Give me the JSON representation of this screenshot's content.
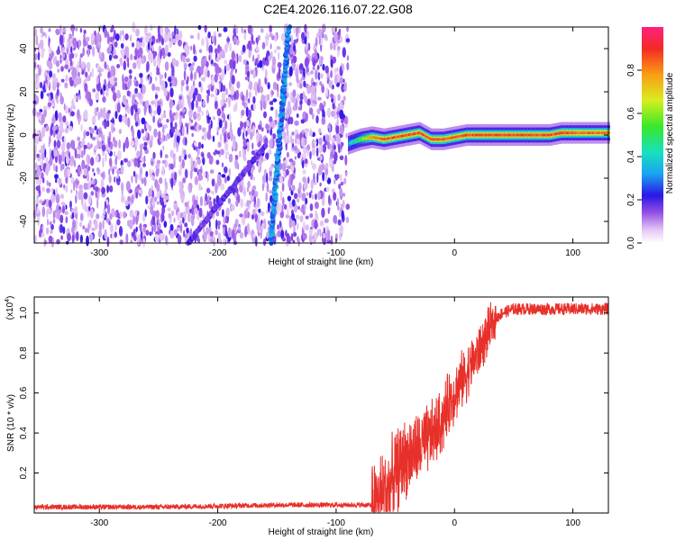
{
  "title": "C2E4.2026.116.07.22.G08",
  "chart_data": [
    {
      "type": "heatmap",
      "xlabel": "Height of straight line (km)",
      "ylabel": "Frequency (Hz)",
      "xlim": [
        -355,
        130
      ],
      "ylim": [
        -50,
        50
      ],
      "xticks": [
        -300,
        -200,
        -100,
        0,
        100
      ],
      "yticks": [
        -40,
        -20,
        0,
        20,
        40
      ],
      "colorbar": {
        "label": "Normalized spectral amplitude",
        "range": [
          0,
          1
        ],
        "ticks": [
          "0.0",
          "0.2",
          "0.4",
          "0.6",
          "0.8"
        ],
        "tick_values": [
          0.0,
          0.2,
          0.4,
          0.6,
          0.8
        ]
      },
      "noise_region_x": [
        -355,
        -90
      ],
      "noise_level": 0.15,
      "streak_main": {
        "x": [
          -155,
          -140
        ],
        "y": [
          -50,
          50
        ],
        "amplitude": 0.3
      },
      "streak_weak": {
        "x": [
          -225,
          -160
        ],
        "y": [
          -50,
          -5
        ],
        "amplitude": 0.18
      },
      "carrier": {
        "x": [
          -90,
          -80,
          -70,
          -60,
          -50,
          -40,
          -30,
          -20,
          -10,
          0,
          10,
          20,
          30,
          40,
          50,
          60,
          70,
          80,
          90,
          100,
          110,
          120,
          130
        ],
        "y": [
          -4,
          -2,
          -1,
          -2,
          -1,
          0,
          1,
          -2,
          -2,
          -1,
          0,
          0,
          0,
          0,
          0,
          0,
          0,
          0,
          1,
          1,
          1,
          1,
          1
        ],
        "amplitude": [
          0.4,
          0.6,
          0.85,
          0.9,
          0.9,
          0.92,
          0.92,
          0.9,
          0.9,
          0.9,
          0.92,
          0.92,
          0.92,
          0.92,
          0.92,
          0.92,
          0.92,
          0.92,
          0.94,
          0.9,
          0.88,
          0.88,
          0.88
        ]
      }
    },
    {
      "type": "line",
      "xlabel": "Height of straight line (km)",
      "ylabel": "SNR (10 * v/v)",
      "y_multiplier": "(x10",
      "y_multiplier_exp": "4",
      "xlim": [
        -355,
        130
      ],
      "ylim": [
        0,
        1.08
      ],
      "xticks": [
        -300,
        -200,
        -100,
        0,
        100
      ],
      "yticks": [
        0.2,
        0.4,
        0.6,
        0.8,
        1.0
      ],
      "color": "#e8302a",
      "series": [
        {
          "x": [
            -355,
            -300,
            -250,
            -200,
            -150,
            -100,
            -70,
            -65,
            -60,
            -55,
            -50,
            -45,
            -40,
            -35,
            -30,
            -25,
            -20,
            -15,
            -10,
            -5,
            0,
            5,
            10,
            15,
            20,
            25,
            30,
            35,
            40,
            50,
            60,
            80,
            100,
            130
          ],
          "y": [
            0.03,
            0.03,
            0.03,
            0.035,
            0.04,
            0.04,
            0.04,
            0.06,
            0.1,
            0.13,
            0.2,
            0.25,
            0.28,
            0.3,
            0.32,
            0.35,
            0.38,
            0.42,
            0.46,
            0.55,
            0.6,
            0.65,
            0.7,
            0.75,
            0.8,
            0.86,
            0.92,
            0.97,
            1.0,
            1.02,
            1.02,
            1.02,
            1.02,
            1.02
          ]
        }
      ]
    }
  ]
}
